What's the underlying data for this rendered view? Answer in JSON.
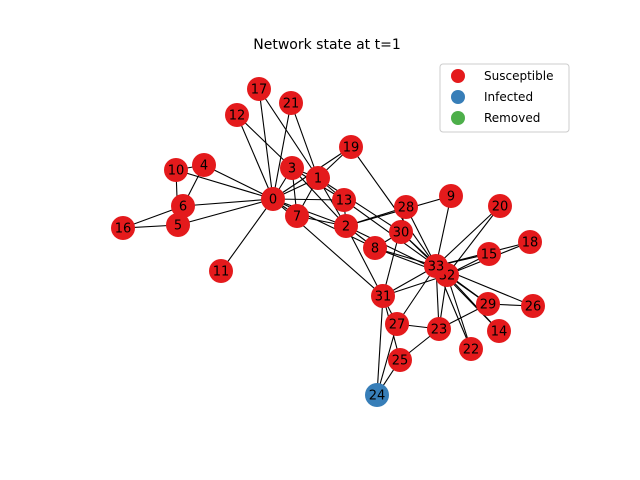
{
  "title": "Network state at t=1",
  "colors": {
    "Susceptible": "#e41a1c",
    "Infected": "#377eb8",
    "Removed": "#4daf4a"
  },
  "legend": [
    "Susceptible",
    "Infected",
    "Removed"
  ],
  "nodes": [
    {
      "id": 0,
      "label": "0",
      "state": "Susceptible"
    },
    {
      "id": 1,
      "label": "1",
      "state": "Susceptible"
    },
    {
      "id": 2,
      "label": "2",
      "state": "Susceptible"
    },
    {
      "id": 3,
      "label": "3",
      "state": "Susceptible"
    },
    {
      "id": 4,
      "label": "4",
      "state": "Susceptible"
    },
    {
      "id": 5,
      "label": "5",
      "state": "Susceptible"
    },
    {
      "id": 6,
      "label": "6",
      "state": "Susceptible"
    },
    {
      "id": 7,
      "label": "7",
      "state": "Susceptible"
    },
    {
      "id": 8,
      "label": "8",
      "state": "Susceptible"
    },
    {
      "id": 9,
      "label": "9",
      "state": "Susceptible"
    },
    {
      "id": 10,
      "label": "10",
      "state": "Susceptible"
    },
    {
      "id": 11,
      "label": "11",
      "state": "Susceptible"
    },
    {
      "id": 12,
      "label": "12",
      "state": "Susceptible"
    },
    {
      "id": 13,
      "label": "13",
      "state": "Susceptible"
    },
    {
      "id": 14,
      "label": "14",
      "state": "Susceptible"
    },
    {
      "id": 15,
      "label": "15",
      "state": "Susceptible"
    },
    {
      "id": 16,
      "label": "16",
      "state": "Susceptible"
    },
    {
      "id": 17,
      "label": "17",
      "state": "Susceptible"
    },
    {
      "id": 18,
      "label": "18",
      "state": "Susceptible"
    },
    {
      "id": 19,
      "label": "19",
      "state": "Susceptible"
    },
    {
      "id": 20,
      "label": "20",
      "state": "Susceptible"
    },
    {
      "id": 21,
      "label": "21",
      "state": "Susceptible"
    },
    {
      "id": 22,
      "label": "22",
      "state": "Susceptible"
    },
    {
      "id": 23,
      "label": "23",
      "state": "Susceptible"
    },
    {
      "id": 24,
      "label": "24",
      "state": "Infected"
    },
    {
      "id": 25,
      "label": "25",
      "state": "Susceptible"
    },
    {
      "id": 26,
      "label": "26",
      "state": "Susceptible"
    },
    {
      "id": 27,
      "label": "27",
      "state": "Susceptible"
    },
    {
      "id": 28,
      "label": "28",
      "state": "Susceptible"
    },
    {
      "id": 29,
      "label": "29",
      "state": "Susceptible"
    },
    {
      "id": 30,
      "label": "30",
      "state": "Susceptible"
    },
    {
      "id": 31,
      "label": "31",
      "state": "Susceptible"
    },
    {
      "id": 32,
      "label": "32",
      "state": "Susceptible"
    },
    {
      "id": 33,
      "label": "33",
      "state": "Susceptible"
    }
  ],
  "edges": [
    [
      0,
      1
    ],
    [
      0,
      2
    ],
    [
      0,
      3
    ],
    [
      0,
      4
    ],
    [
      0,
      5
    ],
    [
      0,
      6
    ],
    [
      0,
      7
    ],
    [
      0,
      8
    ],
    [
      0,
      10
    ],
    [
      0,
      11
    ],
    [
      0,
      12
    ],
    [
      0,
      13
    ],
    [
      0,
      17
    ],
    [
      0,
      19
    ],
    [
      0,
      21
    ],
    [
      0,
      31
    ],
    [
      1,
      2
    ],
    [
      1,
      3
    ],
    [
      1,
      7
    ],
    [
      1,
      13
    ],
    [
      1,
      17
    ],
    [
      1,
      19
    ],
    [
      1,
      21
    ],
    [
      1,
      30
    ],
    [
      2,
      3
    ],
    [
      2,
      7
    ],
    [
      2,
      8
    ],
    [
      2,
      9
    ],
    [
      2,
      13
    ],
    [
      2,
      27
    ],
    [
      2,
      28
    ],
    [
      2,
      32
    ],
    [
      3,
      7
    ],
    [
      3,
      12
    ],
    [
      3,
      13
    ],
    [
      4,
      6
    ],
    [
      4,
      10
    ],
    [
      5,
      6
    ],
    [
      5,
      10
    ],
    [
      5,
      16
    ],
    [
      6,
      16
    ],
    [
      8,
      30
    ],
    [
      8,
      32
    ],
    [
      8,
      33
    ],
    [
      9,
      33
    ],
    [
      13,
      33
    ],
    [
      14,
      32
    ],
    [
      14,
      33
    ],
    [
      15,
      32
    ],
    [
      15,
      33
    ],
    [
      18,
      32
    ],
    [
      18,
      33
    ],
    [
      19,
      33
    ],
    [
      20,
      32
    ],
    [
      20,
      33
    ],
    [
      22,
      32
    ],
    [
      22,
      33
    ],
    [
      23,
      25
    ],
    [
      23,
      27
    ],
    [
      23,
      29
    ],
    [
      23,
      32
    ],
    [
      23,
      33
    ],
    [
      24,
      25
    ],
    [
      24,
      27
    ],
    [
      24,
      31
    ],
    [
      25,
      31
    ],
    [
      26,
      29
    ],
    [
      26,
      33
    ],
    [
      27,
      33
    ],
    [
      28,
      31
    ],
    [
      28,
      33
    ],
    [
      29,
      32
    ],
    [
      29,
      33
    ],
    [
      30,
      32
    ],
    [
      30,
      33
    ],
    [
      31,
      32
    ],
    [
      31,
      33
    ],
    [
      32,
      33
    ]
  ]
}
